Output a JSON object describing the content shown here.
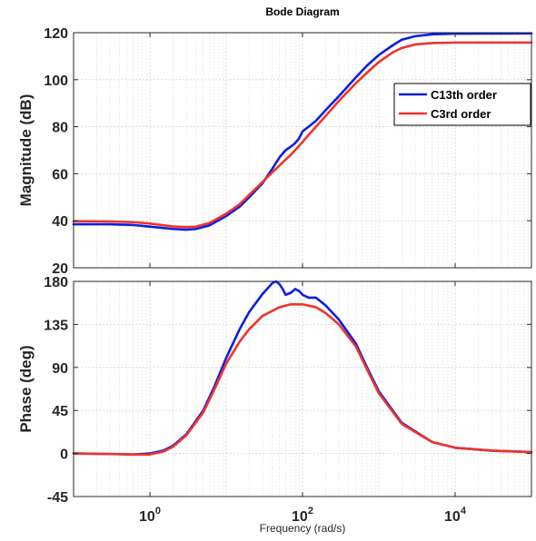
{
  "chart_data": {
    "type": "line",
    "title": "Bode Diagram",
    "xlabel": "Frequency  (rad/s)",
    "xscale": "log",
    "xlim": [
      0.1,
      100000
    ],
    "xticks": [
      {
        "value": 1,
        "base": "10",
        "exp": "0"
      },
      {
        "value": 100,
        "base": "10",
        "exp": "2"
      },
      {
        "value": 10000,
        "base": "10",
        "exp": "4"
      }
    ],
    "grid": true,
    "legend": {
      "placement": "right",
      "entries": [
        {
          "name": "C13th order",
          "color": "#0a1ee6"
        },
        {
          "name": "C3rd order",
          "color": "#f0332a"
        }
      ]
    },
    "subplots": [
      {
        "ylabel": "Magnitude (dB)",
        "ylim": [
          20,
          120
        ],
        "yticks": [
          20,
          40,
          60,
          80,
          100,
          120
        ],
        "series": [
          {
            "name": "C13th order",
            "color": "#0a1ee6",
            "x": [
              0.1,
              0.3,
              0.6,
              1,
              2,
              3,
              4,
              6,
              10,
              15,
              20,
              30,
              40,
              50,
              60,
              70,
              80,
              90,
              100,
              120,
              150,
              200,
              300,
              500,
              700,
              1000,
              1500,
              2000,
              3000,
              5000,
              10000,
              100000
            ],
            "y": [
              38.5,
              38.5,
              38.2,
              37.5,
              36.5,
              36.2,
              36.5,
              38,
              42,
              46,
              50,
              56,
              62,
              67,
              70,
              71.5,
              73,
              75,
              78,
              80,
              82.5,
              87,
              93,
              101,
              106,
              110.5,
              114.5,
              117,
              118.5,
              119.3,
              119.6,
              119.7
            ]
          },
          {
            "name": "C3rd order",
            "color": "#f0332a",
            "x": [
              0.1,
              0.3,
              0.6,
              1,
              2,
              3,
              4,
              6,
              10,
              15,
              20,
              30,
              40,
              50,
              60,
              70,
              80,
              100,
              120,
              150,
              200,
              300,
              500,
              700,
              1000,
              1500,
              2000,
              3000,
              5000,
              10000,
              100000
            ],
            "y": [
              39.8,
              39.7,
              39.4,
              38.8,
              37.6,
              37.3,
              37.5,
              39,
              43,
              47,
              51,
              56.5,
              60.5,
              63.5,
              66,
              68,
              70,
              73.5,
              76.5,
              80,
              84.5,
              91,
              98.5,
              103,
              107.5,
              111.5,
              113.5,
              115,
              115.6,
              115.8,
              115.8
            ]
          }
        ]
      },
      {
        "ylabel": "Phase (deg)",
        "ylim": [
          -45,
          180
        ],
        "yticks": [
          -45,
          0,
          45,
          90,
          135,
          180
        ],
        "series": [
          {
            "name": "C13th order",
            "color": "#0a1ee6",
            "x": [
              0.1,
              0.3,
              0.6,
              1,
              1.5,
              2,
              3,
              5,
              7,
              10,
              15,
              20,
              30,
              40,
              45,
              50,
              55,
              60,
              70,
              80,
              90,
              100,
              120,
              150,
              200,
              300,
              500,
              700,
              1000,
              2000,
              5000,
              10000,
              30000,
              100000
            ],
            "y": [
              0,
              -0.5,
              -1,
              0,
              3,
              8,
              20,
              45,
              70,
              100,
              130,
              148,
              167,
              178,
              180,
              177,
              172,
              166,
              168,
              172,
              170,
              166,
              163,
              163,
              155,
              140,
              115,
              90,
              65,
              32,
              12,
              6,
              3,
              1.5
            ]
          },
          {
            "name": "C3rd order",
            "color": "#f0332a",
            "x": [
              0.1,
              0.3,
              0.6,
              1,
              1.5,
              2,
              3,
              5,
              7,
              10,
              15,
              20,
              30,
              50,
              70,
              100,
              150,
              200,
              300,
              500,
              700,
              1000,
              2000,
              5000,
              10000,
              30000,
              100000
            ],
            "y": [
              0,
              -0.5,
              -1,
              -1,
              2,
              7,
              19,
              43,
              67,
              94,
              117,
              130,
              144,
              153,
              156,
              156,
              153,
              147,
              135,
              112,
              88,
              63,
              31,
              12,
              6,
              3,
              1.5
            ]
          }
        ]
      }
    ]
  }
}
